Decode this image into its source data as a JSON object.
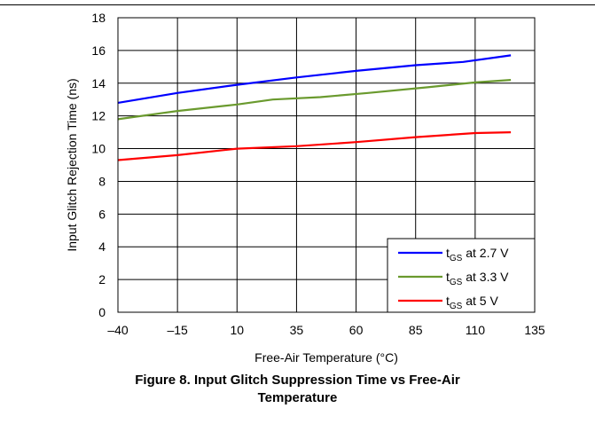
{
  "figure": {
    "caption_line1": "Figure 8. Input Glitch Suppression Time vs Free-Air",
    "caption_line2": "Temperature"
  },
  "chart_data": {
    "type": "line",
    "xlabel": "Free-Air Temperature (°C)",
    "ylabel": "Input Glitch Rejection Time (ns)",
    "xlim": [
      -40,
      135
    ],
    "ylim": [
      0,
      18
    ],
    "x_ticks": [
      -40,
      -15,
      10,
      35,
      60,
      85,
      110,
      135
    ],
    "x_tick_labels": [
      "–40",
      "–15",
      "10",
      "35",
      "60",
      "85",
      "110",
      "135"
    ],
    "y_ticks": [
      0,
      2,
      4,
      6,
      8,
      10,
      12,
      14,
      16,
      18
    ],
    "y_tick_labels": [
      "0",
      "2",
      "4",
      "6",
      "8",
      "10",
      "12",
      "14",
      "16",
      "18"
    ],
    "grid": true,
    "legend_position": "bottom-right",
    "series": [
      {
        "name_main": "t",
        "name_sub": "GS",
        "name_rest": " at 2.7 V",
        "color": "#0000ff",
        "x": [
          -40,
          -15,
          10,
          35,
          60,
          85,
          105,
          125
        ],
        "y": [
          12.8,
          13.4,
          13.9,
          14.35,
          14.75,
          15.1,
          15.3,
          15.7
        ]
      },
      {
        "name_main": "t",
        "name_sub": "GS",
        "name_rest": " at 3.3 V",
        "color": "#6a9a2e",
        "x": [
          -40,
          -15,
          10,
          25,
          45,
          65,
          90,
          110,
          125
        ],
        "y": [
          11.8,
          12.3,
          12.7,
          13.0,
          13.15,
          13.4,
          13.75,
          14.05,
          14.2
        ]
      },
      {
        "name_main": "t",
        "name_sub": "GS",
        "name_rest": " at 5 V",
        "color": "#ff0000",
        "x": [
          -40,
          -15,
          10,
          35,
          60,
          85,
          110,
          125
        ],
        "y": [
          9.3,
          9.6,
          10.0,
          10.15,
          10.4,
          10.7,
          10.95,
          11.0
        ]
      }
    ]
  }
}
